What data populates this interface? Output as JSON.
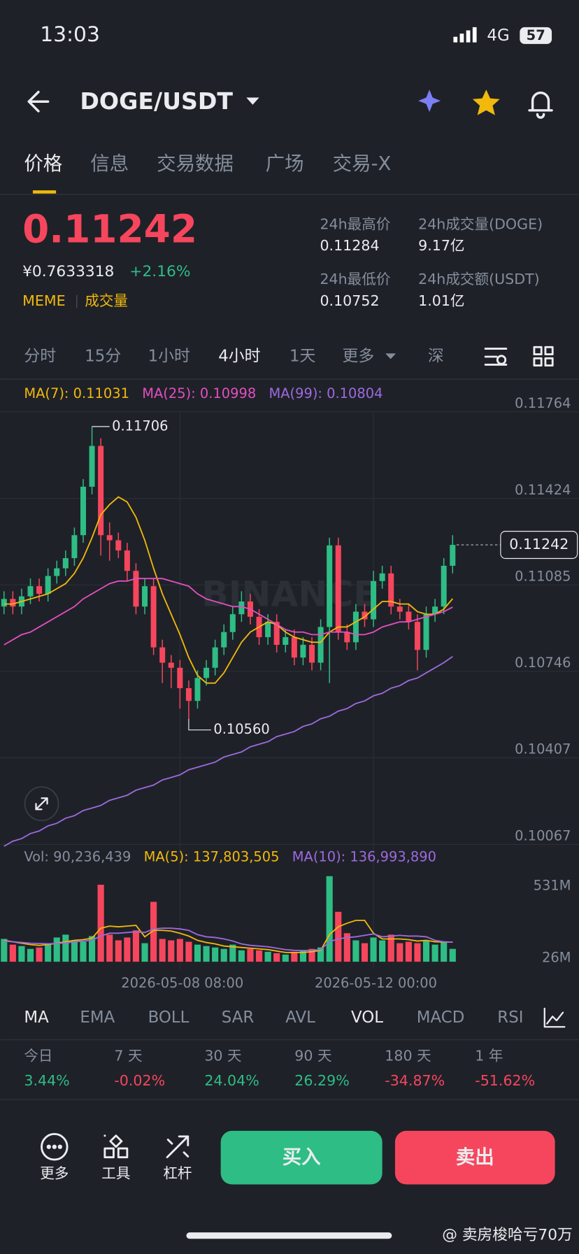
{
  "status_bar": {
    "time": "13:03",
    "network": "4G",
    "battery": "57"
  },
  "header": {
    "pair": "DOGE/USDT"
  },
  "tabs": [
    "价格",
    "信息",
    "交易数据",
    "广场",
    "交易-X"
  ],
  "ticker": {
    "price": "0.11242",
    "cny": "¥0.7633318",
    "change": "+2.16%",
    "tags": [
      "MEME",
      "成交量"
    ],
    "stats": [
      {
        "label": "24h最高价",
        "value": "0.11284"
      },
      {
        "label": "24h成交量(DOGE)",
        "value": "9.17亿"
      },
      {
        "label": "24h最低价",
        "value": "0.10752"
      },
      {
        "label": "24h成交额(USDT)",
        "value": "1.01亿"
      }
    ]
  },
  "intervals": [
    "分时",
    "15分",
    "1小时",
    "4小时",
    "1天",
    "更多",
    "深"
  ],
  "watermark_logo": "BINANCE",
  "chart_data": [
    {
      "type": "candlestick",
      "x": [
        null,
        null,
        null,
        null,
        null,
        null,
        null,
        null,
        null,
        null,
        null,
        null,
        null,
        null,
        null,
        null,
        null,
        null,
        null,
        null,
        "2026-05-08 08:00",
        null,
        null,
        null,
        null,
        null,
        null,
        null,
        null,
        null,
        null,
        null,
        null,
        null,
        null,
        null,
        null,
        null,
        null,
        null,
        null,
        null,
        "2026-05-12 00:00",
        null,
        null,
        null,
        null,
        null,
        null,
        null,
        null,
        null
      ],
      "open": [
        0.11,
        0.1103,
        0.11,
        0.1104,
        0.1108,
        0.1105,
        0.1112,
        0.1115,
        0.1119,
        0.1128,
        0.1147,
        0.1163,
        0.1128,
        0.1126,
        0.1122,
        0.1114,
        0.11,
        0.1108,
        0.1084,
        0.1078,
        0.1076,
        0.1068,
        0.1063,
        0.1072,
        0.1076,
        0.1084,
        0.109,
        0.1097,
        0.1102,
        0.1096,
        0.1088,
        0.1094,
        0.1085,
        0.1088,
        0.108,
        0.1085,
        0.1078,
        0.1092,
        0.1124,
        0.109,
        0.1086,
        0.1098,
        0.1095,
        0.111,
        0.1113,
        0.11,
        0.1098,
        0.1094,
        0.1083,
        0.1097,
        0.11,
        0.1116
      ],
      "high": [
        0.1106,
        0.1106,
        0.1107,
        0.1111,
        0.1111,
        0.1115,
        0.1118,
        0.1122,
        0.1131,
        0.115,
        0.11706,
        0.1166,
        0.1133,
        0.1129,
        0.1125,
        0.1117,
        0.1111,
        0.1111,
        0.1087,
        0.1081,
        0.1079,
        0.1071,
        0.1075,
        0.1079,
        0.1087,
        0.1093,
        0.11,
        0.1106,
        0.1105,
        0.1099,
        0.1097,
        0.1097,
        0.1091,
        0.1091,
        0.1088,
        0.1088,
        0.1095,
        0.1127,
        0.1127,
        0.1093,
        0.1101,
        0.1101,
        0.1114,
        0.1116,
        0.1116,
        0.1103,
        0.1101,
        0.1097,
        0.11,
        0.1103,
        0.1119,
        0.1128
      ],
      "low": [
        0.1097,
        0.1097,
        0.1097,
        0.1101,
        0.1102,
        0.1102,
        0.1109,
        0.1112,
        0.1116,
        0.1125,
        0.1144,
        0.112,
        0.1118,
        0.1119,
        0.111,
        0.1097,
        0.1097,
        0.1081,
        0.107,
        0.1068,
        0.106,
        0.1056,
        0.106,
        0.1069,
        0.1073,
        0.1081,
        0.1087,
        0.1094,
        0.1093,
        0.1085,
        0.1085,
        0.1082,
        0.1082,
        0.1077,
        0.1077,
        0.1075,
        0.1075,
        0.107,
        0.1087,
        0.1083,
        0.1083,
        0.1092,
        0.1092,
        0.1107,
        0.1097,
        0.1095,
        0.1091,
        0.1075,
        0.108,
        0.1094,
        0.1097,
        0.1113
      ],
      "close": [
        0.1103,
        0.11,
        0.1104,
        0.1108,
        0.1105,
        0.1112,
        0.1115,
        0.1119,
        0.1128,
        0.1147,
        0.1163,
        0.1128,
        0.1126,
        0.1122,
        0.1114,
        0.11,
        0.1108,
        0.1084,
        0.1078,
        0.1076,
        0.1068,
        0.1063,
        0.1072,
        0.1076,
        0.1084,
        0.109,
        0.1097,
        0.1102,
        0.1096,
        0.1088,
        0.1094,
        0.1085,
        0.1088,
        0.108,
        0.1085,
        0.1078,
        0.1092,
        0.1124,
        0.109,
        0.1086,
        0.1098,
        0.1095,
        0.111,
        0.1113,
        0.11,
        0.1098,
        0.1094,
        0.1083,
        0.1097,
        0.11,
        0.1116,
        0.11242
      ],
      "up_color": "#2ebd85",
      "down_color": "#f6465d",
      "series": [
        {
          "name": "MA(7): 0.11031",
          "color": "#f0b90b",
          "values": [
            0.1101,
            0.1101,
            0.1102,
            0.1103,
            0.1104,
            0.1105,
            0.1107,
            0.1109,
            0.1113,
            0.1119,
            0.1127,
            0.1136,
            0.114,
            0.1143,
            0.1141,
            0.1135,
            0.1126,
            0.1115,
            0.1105,
            0.1097,
            0.1089,
            0.108,
            0.1073,
            0.107,
            0.107,
            0.1074,
            0.108,
            0.1086,
            0.109,
            0.1092,
            0.1094,
            0.1093,
            0.109,
            0.1088,
            0.1087,
            0.1086,
            0.1086,
            0.109,
            0.1092,
            0.1092,
            0.1094,
            0.1096,
            0.1099,
            0.1102,
            0.1102,
            0.1101,
            0.1101,
            0.1098,
            0.1097,
            0.1097,
            0.1099,
            0.11031
          ]
        },
        {
          "name": "MA(25): 0.10998",
          "color": "#e14fc0",
          "values": [
            0.1085,
            0.1087,
            0.1089,
            0.109,
            0.1092,
            0.1094,
            0.1096,
            0.1098,
            0.11,
            0.1103,
            0.1105,
            0.1107,
            0.1109,
            0.111,
            0.111,
            0.1111,
            0.1111,
            0.1111,
            0.1111,
            0.111,
            0.1109,
            0.1108,
            0.1105,
            0.1103,
            0.1102,
            0.1101,
            0.11,
            0.11,
            0.1099,
            0.1097,
            0.1095,
            0.1093,
            0.1091,
            0.109,
            0.109,
            0.1089,
            0.1089,
            0.109,
            0.109,
            0.109,
            0.1089,
            0.1089,
            0.109,
            0.1092,
            0.1093,
            0.1094,
            0.1094,
            0.1095,
            0.1096,
            0.1097,
            0.1098,
            0.10998
          ]
        },
        {
          "name": "MA(99): 0.10804",
          "color": "#9c6ade",
          "values": [
            0.1006,
            0.1008,
            0.1009,
            0.1011,
            0.1012,
            0.1014,
            0.1015,
            0.1017,
            0.1018,
            0.102,
            0.1021,
            0.1022,
            0.1024,
            0.1025,
            0.1026,
            0.1028,
            0.1029,
            0.103,
            0.1032,
            0.1033,
            0.1034,
            0.1036,
            0.1037,
            0.1038,
            0.1039,
            0.1041,
            0.1042,
            0.1043,
            0.1045,
            0.1046,
            0.1047,
            0.1049,
            0.105,
            0.1051,
            0.1053,
            0.1054,
            0.1056,
            0.1057,
            0.1059,
            0.106,
            0.1062,
            0.1063,
            0.1065,
            0.1066,
            0.1068,
            0.1069,
            0.1071,
            0.1072,
            0.1074,
            0.1076,
            0.1078,
            0.10804
          ]
        }
      ],
      "max_label": "0.11706",
      "min_label": "0.10560",
      "last_label": "0.11242",
      "ylim": [
        0.10048,
        0.11889
      ],
      "yticks": [
        0.11764,
        0.11424,
        0.11085,
        0.10746,
        0.10407,
        0.10067
      ],
      "grid": true
    },
    {
      "type": "bar",
      "series": [
        {
          "name": "Vol: 90,236,439",
          "color": "#848e9c",
          "values": [
            160000000,
            120000000,
            110000000,
            90000000,
            100000000,
            130000000,
            170000000,
            190000000,
            150000000,
            140000000,
            180000000,
            540000000,
            190000000,
            150000000,
            170000000,
            220000000,
            130000000,
            420000000,
            160000000,
            150000000,
            160000000,
            140000000,
            120000000,
            110000000,
            100000000,
            90000000,
            120000000,
            80000000,
            90000000,
            80000000,
            70000000,
            60000000,
            50000000,
            70000000,
            80000000,
            90000000,
            100000000,
            600000000,
            350000000,
            200000000,
            150000000,
            130000000,
            170000000,
            150000000,
            190000000,
            130000000,
            140000000,
            130000000,
            150000000,
            120000000,
            140000000,
            90236439
          ]
        },
        {
          "name": "MA(5): 137,803,505",
          "color": "#f0b90b",
          "values": [
            150000000,
            140000000,
            130000000,
            120000000,
            115000000,
            120000000,
            130000000,
            140000000,
            150000000,
            155000000,
            165000000,
            235000000,
            250000000,
            245000000,
            250000000,
            255000000,
            175000000,
            220000000,
            220000000,
            215000000,
            200000000,
            180000000,
            150000000,
            135000000,
            125000000,
            110000000,
            105000000,
            100000000,
            95000000,
            90000000,
            85000000,
            75000000,
            65000000,
            65000000,
            65000000,
            70000000,
            80000000,
            190000000,
            245000000,
            270000000,
            290000000,
            290000000,
            200000000,
            160000000,
            160000000,
            160000000,
            155000000,
            145000000,
            150000000,
            140000000,
            138000000,
            137803505
          ]
        },
        {
          "name": "MA(10): 136,993,890",
          "color": "#9c6ade",
          "values": [
            145000000,
            140000000,
            135000000,
            130000000,
            128000000,
            126000000,
            128000000,
            132000000,
            140000000,
            145000000,
            150000000,
            180000000,
            200000000,
            200000000,
            205000000,
            210000000,
            205000000,
            230000000,
            235000000,
            235000000,
            230000000,
            220000000,
            190000000,
            175000000,
            170000000,
            160000000,
            145000000,
            125000000,
            115000000,
            110000000,
            105000000,
            95000000,
            85000000,
            80000000,
            78000000,
            80000000,
            85000000,
            140000000,
            160000000,
            170000000,
            175000000,
            185000000,
            195000000,
            175000000,
            180000000,
            185000000,
            180000000,
            180000000,
            175000000,
            150000000,
            140000000,
            136993890
          ]
        }
      ],
      "ylim": [
        -53000000,
        620000000
      ],
      "yticks": [
        {
          "value": 531000000,
          "label": "531M"
        },
        {
          "value": 26000000,
          "label": "26M"
        }
      ]
    }
  ],
  "indicators": [
    "MA",
    "EMA",
    "BOLL",
    "SAR",
    "AVL",
    "VOL",
    "MACD",
    "RSI"
  ],
  "performance": [
    {
      "period": "今日",
      "value": "3.44%"
    },
    {
      "period": "7 天",
      "value": "-0.02%"
    },
    {
      "period": "30 天",
      "value": "24.04%"
    },
    {
      "period": "90 天",
      "value": "26.29%"
    },
    {
      "period": "180 天",
      "value": "-34.87%"
    },
    {
      "period": "1 年",
      "value": "-51.62%"
    }
  ],
  "actions": [
    "更多",
    "工具",
    "杠杆"
  ],
  "buy": "买入",
  "sell": "卖出",
  "watermark": "@ 卖房梭哈亏70万"
}
